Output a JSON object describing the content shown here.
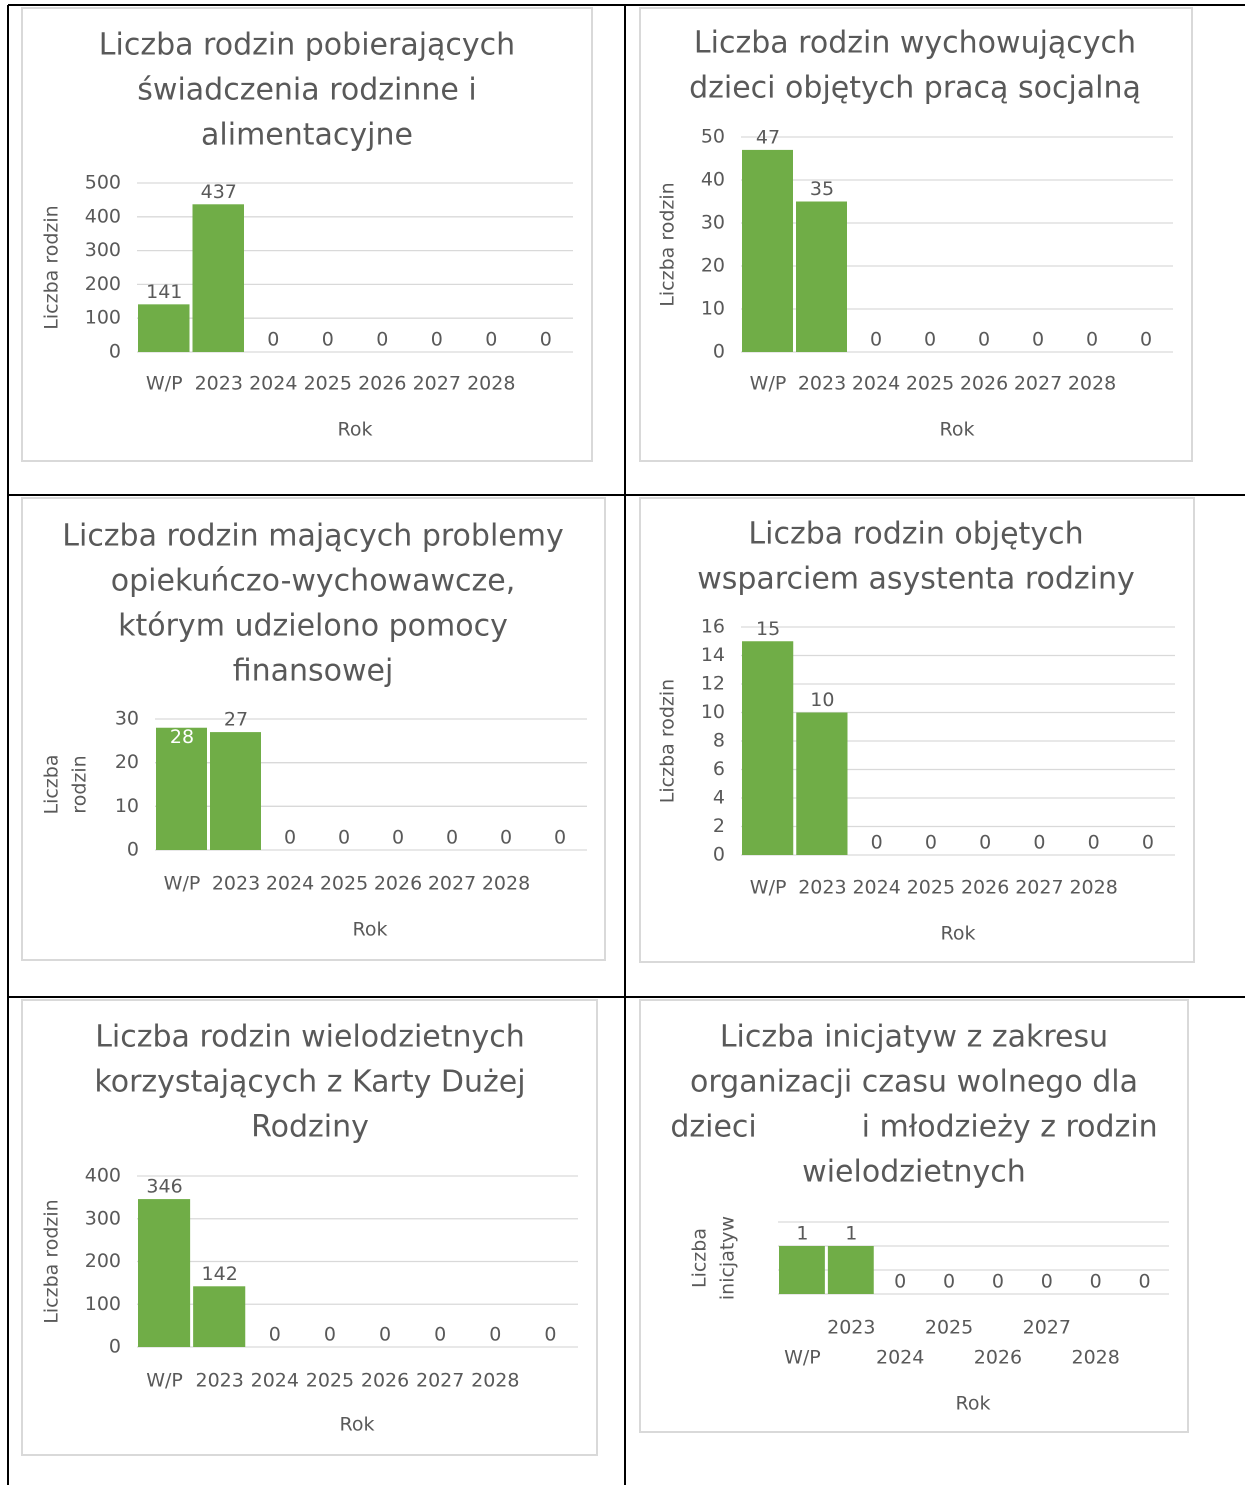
{
  "chart_data": [
    {
      "type": "bar",
      "title": [
        "Liczba rodzin pobierających",
        "świadczenia rodzinne i",
        "alimentacyjne"
      ],
      "categories": [
        "W/P",
        "2023",
        "2024",
        "2025",
        "2026",
        "2027",
        "2028",
        null
      ],
      "values": [
        141,
        437,
        0,
        0,
        0,
        0,
        0,
        0
      ],
      "color": "#70ad47",
      "ylim": [
        0,
        500
      ],
      "yticks": [
        0,
        100,
        200,
        300,
        400,
        500
      ],
      "grid": true,
      "ylabel": [
        "Liczba rodzin"
      ],
      "xlabel": "Rok"
    },
    {
      "type": "bar",
      "title": [
        "Liczba rodzin wychowujących",
        "dzieci objętych pracą socjalną"
      ],
      "categories": [
        "W/P",
        "2023",
        "2024",
        "2025",
        "2026",
        "2027",
        "2028",
        null
      ],
      "values": [
        47,
        35,
        0,
        0,
        0,
        0,
        0,
        0
      ],
      "color": "#70ad47",
      "ylim": [
        0,
        50
      ],
      "yticks": [
        0,
        10,
        20,
        30,
        40,
        50
      ],
      "grid": true,
      "ylabel": [
        "Liczba rodzin"
      ],
      "xlabel": "Rok"
    },
    {
      "type": "bar",
      "title": [
        "Liczba rodzin mających problemy",
        "opiekuńczo-wychowawcze,",
        "którym udzielono pomocy",
        "finansowej"
      ],
      "categories": [
        "W/P",
        "2023",
        "2024",
        "2025",
        "2026",
        "2027",
        "2028",
        null
      ],
      "values": [
        28,
        27,
        0,
        0,
        0,
        0,
        0,
        0
      ],
      "color": "#70ad47",
      "ylim": [
        0,
        30
      ],
      "yticks": [
        0,
        10,
        20,
        30
      ],
      "grid": true,
      "ylabel": [
        "Liczba",
        "rodzin"
      ],
      "xlabel": "Rok"
    },
    {
      "type": "bar",
      "title": [
        "Liczba rodzin objętych",
        "wsparciem asystenta rodziny"
      ],
      "categories": [
        "W/P",
        "2023",
        "2024",
        "2025",
        "2026",
        "2027",
        "2028",
        null
      ],
      "values": [
        15,
        10,
        0,
        0,
        0,
        0,
        0,
        0
      ],
      "color": "#70ad47",
      "ylim": [
        0,
        16
      ],
      "yticks": [
        0,
        2,
        4,
        6,
        8,
        10,
        12,
        14,
        16
      ],
      "grid": true,
      "ylabel": [
        "Liczba rodzin"
      ],
      "xlabel": "Rok"
    },
    {
      "type": "bar",
      "title": [
        "Liczba rodzin wielodzietnych",
        "korzystających z Karty Dużej",
        "Rodziny"
      ],
      "categories": [
        "W/P",
        "2023",
        "2024",
        "2025",
        "2026",
        "2027",
        "2028",
        null
      ],
      "values": [
        346,
        142,
        0,
        0,
        0,
        0,
        0,
        0
      ],
      "color": "#70ad47",
      "ylim": [
        0,
        400
      ],
      "yticks": [
        0,
        100,
        200,
        300,
        400
      ],
      "grid": true,
      "ylabel": [
        "Liczba rodzin"
      ],
      "xlabel": "Rok"
    },
    {
      "type": "bar",
      "title": [
        "Liczba inicjatyw z zakresu",
        "organizacji czasu wolnego dla",
        "dzieci           i młodzieży z rodzin",
        "wielodzietnych"
      ],
      "categories": [
        "W/P",
        "2023",
        "2024",
        "2025",
        "2026",
        "2027",
        "2028",
        null
      ],
      "values": [
        1,
        1,
        0,
        0,
        0,
        0,
        0,
        0
      ],
      "color": "#70ad47",
      "ylim": [
        0,
        1.5
      ],
      "yticks": [
        0,
        0.5,
        1,
        1.5
      ],
      "grid": true,
      "ytick_labels": false,
      "xtick_stagger": true,
      "ylabel": [
        "Liczba",
        "inicjatyw"
      ],
      "xlabel": "Rok"
    }
  ]
}
